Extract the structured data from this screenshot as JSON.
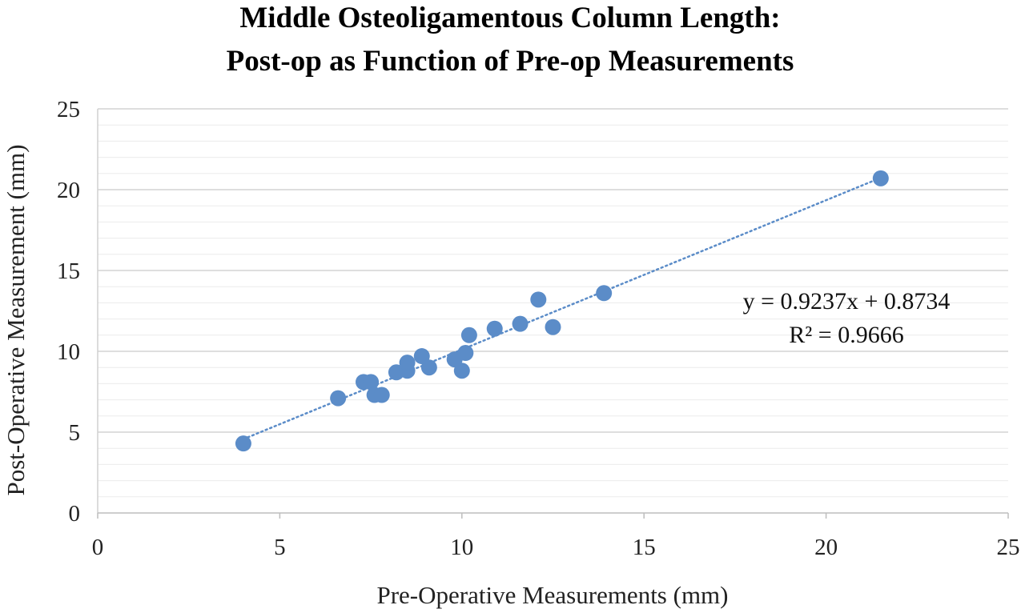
{
  "chart_data": {
    "type": "scatter",
    "title": "Middle Osteoligamentous Column Length:",
    "subtitle": "Post-op as Function of Pre-op Measurements",
    "xlabel": "Pre-Operative Measurements (mm)",
    "ylabel": "Post-Operative Measurement (mm)",
    "xlim": [
      0,
      25
    ],
    "ylim": [
      0,
      25
    ],
    "x_ticks": [
      "0",
      "5",
      "10",
      "15",
      "20",
      "25"
    ],
    "y_ticks": [
      "0",
      "5",
      "10",
      "15",
      "20",
      "25"
    ],
    "grid": "horizontal, minor every 1",
    "legend": "none",
    "marker_color": "#5b8cc8",
    "trendline_color": "#5b8cc8",
    "points": [
      {
        "x": 4.0,
        "y": 4.3
      },
      {
        "x": 6.6,
        "y": 7.1
      },
      {
        "x": 7.3,
        "y": 8.1
      },
      {
        "x": 7.5,
        "y": 8.1
      },
      {
        "x": 7.6,
        "y": 7.3
      },
      {
        "x": 7.8,
        "y": 7.3
      },
      {
        "x": 8.2,
        "y": 8.7
      },
      {
        "x": 8.5,
        "y": 8.8
      },
      {
        "x": 8.5,
        "y": 9.3
      },
      {
        "x": 8.9,
        "y": 9.7
      },
      {
        "x": 9.1,
        "y": 9.0
      },
      {
        "x": 9.8,
        "y": 9.5
      },
      {
        "x": 10.0,
        "y": 8.8
      },
      {
        "x": 10.1,
        "y": 9.9
      },
      {
        "x": 10.2,
        "y": 11.0
      },
      {
        "x": 10.9,
        "y": 11.4
      },
      {
        "x": 11.6,
        "y": 11.7
      },
      {
        "x": 12.1,
        "y": 13.2
      },
      {
        "x": 12.5,
        "y": 11.5
      },
      {
        "x": 13.9,
        "y": 13.6
      },
      {
        "x": 21.5,
        "y": 20.7
      }
    ],
    "trendline": {
      "type": "linear",
      "slope": 0.9237,
      "intercept": 0.8734,
      "x_range": [
        4.0,
        21.5
      ],
      "equation_label": "y = 0.9237x + 0.8734",
      "r2_label": "R² = 0.9666"
    }
  }
}
